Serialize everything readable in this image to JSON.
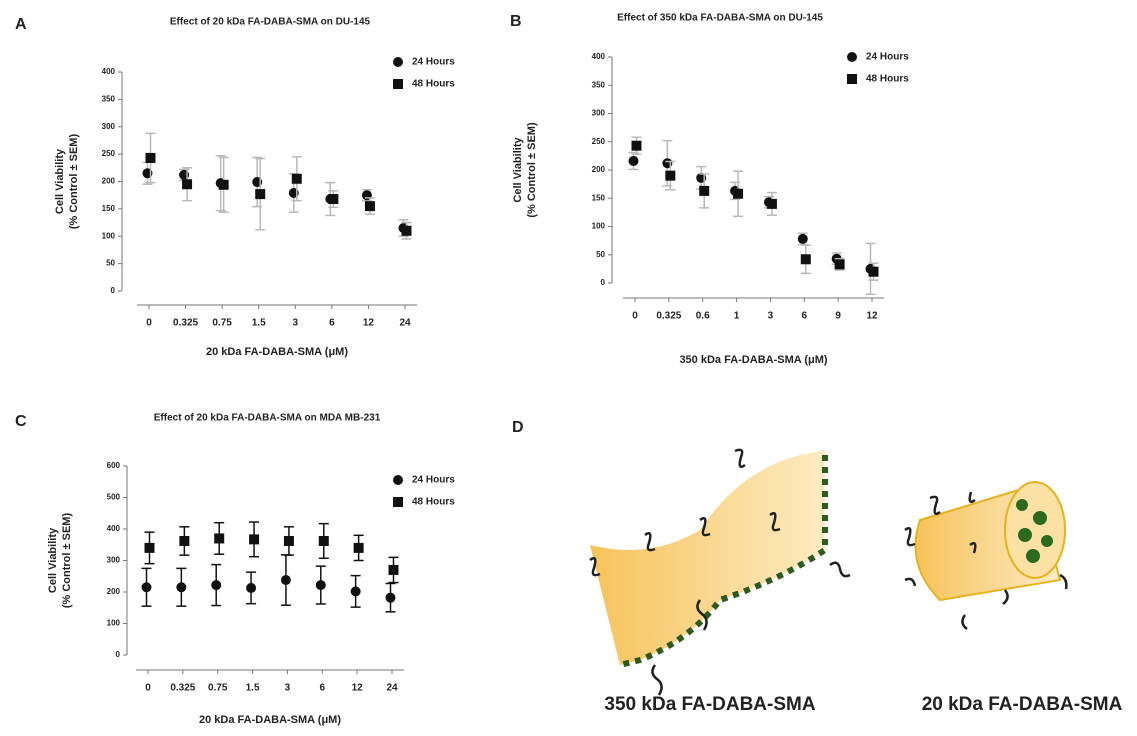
{
  "chart_data": [
    {
      "type": "scatter",
      "panel": "A",
      "title": "Effect of 20 kDa FA-DABA-SMA on DU-145",
      "ylabel": [
        "Cell Viability",
        "(% Control ± SEM)"
      ],
      "xlabel": "20 kDa FA-DABA-SMA (μM)",
      "categories": [
        "0",
        "0.325",
        "0.75",
        "1.5",
        "3",
        "6",
        "12",
        "24"
      ],
      "ylim": [
        0,
        400
      ],
      "yticks": [
        0,
        50,
        100,
        150,
        200,
        250,
        300,
        350,
        400
      ],
      "legend": "upper right",
      "errorbar_color": "#b8b8b8",
      "series": [
        {
          "name": "24 Hours",
          "color": "#111111",
          "marker": "circle",
          "values": [
            215,
            212,
            197,
            199,
            179,
            168,
            175,
            115
          ],
          "errors": [
            20,
            10,
            50,
            45,
            35,
            30,
            10,
            15
          ]
        },
        {
          "name": "48 Hours",
          "color": "#111111",
          "marker": "square",
          "values": [
            243,
            195,
            194,
            177,
            205,
            168,
            155,
            110
          ],
          "errors": [
            45,
            30,
            50,
            65,
            40,
            15,
            15,
            15
          ]
        }
      ]
    },
    {
      "type": "scatter",
      "panel": "B",
      "title": "Effect of 350 kDa FA-DABA-SMA on DU-145",
      "ylabel": [
        "Cell Viability",
        "(% Control ± SEM)"
      ],
      "xlabel": "350 kDa FA-DABA-SMA (μM)",
      "categories": [
        "0",
        "0.325",
        "0.6",
        "1",
        "3",
        "6",
        "9",
        "12"
      ],
      "ylim": [
        0,
        400
      ],
      "yticks": [
        0,
        50,
        100,
        150,
        200,
        250,
        300,
        350,
        400
      ],
      "legend": "upper right",
      "errorbar_color": "#b8b8b8",
      "series": [
        {
          "name": "24 Hours",
          "color": "#111111",
          "marker": "circle",
          "values": [
            216,
            212,
            186,
            163,
            143,
            78,
            43,
            25
          ],
          "errors": [
            15,
            40,
            20,
            15,
            10,
            10,
            10,
            45
          ]
        },
        {
          "name": "48 Hours",
          "color": "#111111",
          "marker": "square",
          "values": [
            243,
            190,
            163,
            158,
            140,
            42,
            33,
            20
          ],
          "errors": [
            15,
            25,
            30,
            40,
            20,
            25,
            10,
            15
          ]
        }
      ]
    },
    {
      "type": "scatter",
      "panel": "C",
      "title": "Effect of 20 kDa FA-DABA-SMA on MDA MB-231",
      "ylabel": [
        "Cell Viability",
        "(% Control ± SEM)"
      ],
      "xlabel": "20 kDa FA-DABA-SMA (μM)",
      "categories": [
        "0",
        "0.325",
        "0.75",
        "1.5",
        "3",
        "6",
        "12",
        "24"
      ],
      "ylim": [
        0,
        600
      ],
      "yticks": [
        0,
        100,
        200,
        300,
        400,
        500,
        600
      ],
      "legend": "upper right",
      "errorbar_color": "#111111",
      "series": [
        {
          "name": "24 Hours",
          "color": "#111111",
          "marker": "circle",
          "values": [
            215,
            215,
            222,
            213,
            238,
            222,
            202,
            182
          ],
          "errors": [
            60,
            60,
            65,
            50,
            80,
            60,
            50,
            45
          ]
        },
        {
          "name": "48 Hours",
          "color": "#111111",
          "marker": "square",
          "values": [
            340,
            362,
            370,
            367,
            362,
            362,
            340,
            270
          ],
          "errors": [
            50,
            45,
            50,
            55,
            45,
            55,
            40,
            40
          ]
        }
      ]
    }
  ],
  "diagram": {
    "panel": "D",
    "labels": [
      "350 kDa FA-DABA-SMA",
      "20 kDa FA-DABA-SMA"
    ]
  }
}
